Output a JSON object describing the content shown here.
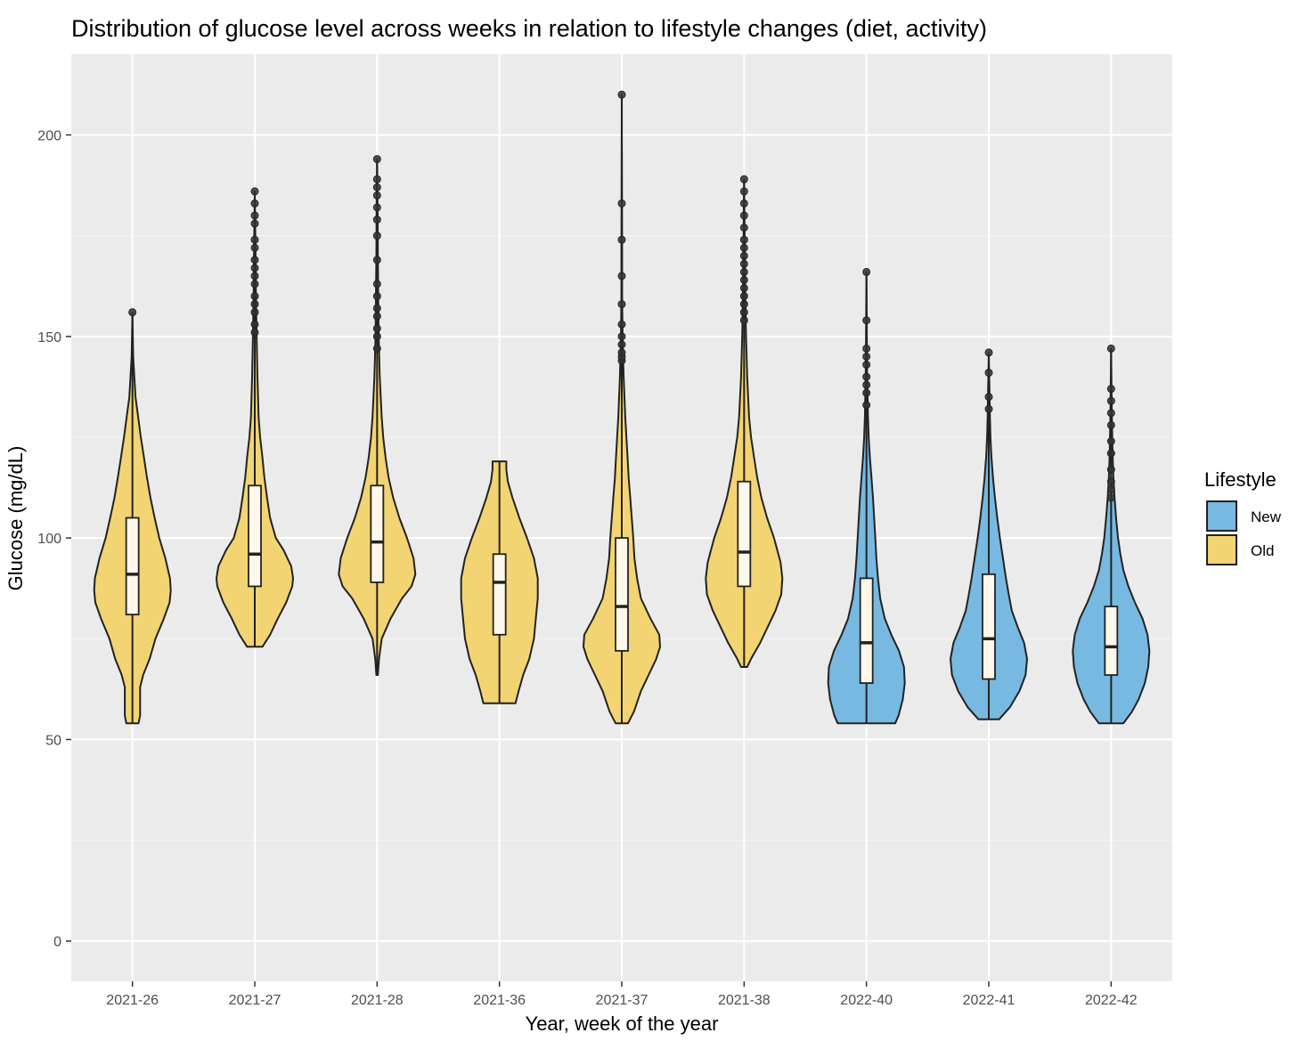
{
  "chart_data": {
    "type": "violin",
    "title": "Distribution of glucose level across weeks in relation to lifestyle changes (diet, activity)",
    "xlabel": "Year, week of the year",
    "ylabel": "Glucose (mg/dL)",
    "ylim": [
      -10,
      220
    ],
    "yticks": [
      0,
      50,
      100,
      150,
      200
    ],
    "grid": true,
    "legend": {
      "title": "Lifestyle",
      "placement": "right",
      "entries": [
        {
          "label": "New",
          "color": "#77b9e0"
        },
        {
          "label": "Old",
          "color": "#f2d472"
        }
      ]
    },
    "categories": [
      "2021-26",
      "2021-27",
      "2021-28",
      "2021-36",
      "2021-37",
      "2021-38",
      "2022-40",
      "2022-41",
      "2022-42"
    ],
    "groups": [
      {
        "category": "2021-26",
        "lifestyle": "Old",
        "min": 54,
        "q1": 81,
        "median": 91,
        "q3": 105,
        "whisker_high": 140,
        "outliers": [
          156
        ],
        "density": [
          [
            54,
            0.16
          ],
          [
            56,
            0.2
          ],
          [
            60,
            0.2
          ],
          [
            63,
            0.2
          ],
          [
            66,
            0.28
          ],
          [
            70,
            0.45
          ],
          [
            75,
            0.6
          ],
          [
            80,
            0.82
          ],
          [
            84,
            0.97
          ],
          [
            87,
            1.0
          ],
          [
            90,
            0.98
          ],
          [
            95,
            0.86
          ],
          [
            100,
            0.7
          ],
          [
            105,
            0.58
          ],
          [
            110,
            0.47
          ],
          [
            115,
            0.38
          ],
          [
            120,
            0.3
          ],
          [
            125,
            0.22
          ],
          [
            130,
            0.15
          ],
          [
            135,
            0.08
          ],
          [
            140,
            0.05
          ],
          [
            145,
            0.02
          ],
          [
            150,
            0.01
          ],
          [
            156,
            0
          ]
        ]
      },
      {
        "category": "2021-27",
        "lifestyle": "Old",
        "min": 73,
        "q1": 88,
        "median": 96,
        "q3": 113,
        "whisker_high": 150,
        "outliers": [
          151,
          153,
          156,
          158,
          160,
          163,
          165,
          167,
          169,
          172,
          174,
          178,
          180,
          183,
          186
        ],
        "density": [
          [
            73,
            0.2
          ],
          [
            76,
            0.4
          ],
          [
            80,
            0.6
          ],
          [
            84,
            0.82
          ],
          [
            88,
            0.98
          ],
          [
            90,
            1.0
          ],
          [
            93,
            0.95
          ],
          [
            97,
            0.75
          ],
          [
            100,
            0.55
          ],
          [
            105,
            0.4
          ],
          [
            110,
            0.32
          ],
          [
            115,
            0.25
          ],
          [
            120,
            0.2
          ],
          [
            125,
            0.14
          ],
          [
            130,
            0.1
          ],
          [
            140,
            0.07
          ],
          [
            150,
            0.05
          ],
          [
            160,
            0.03
          ],
          [
            170,
            0.02
          ],
          [
            186,
            0
          ]
        ]
      },
      {
        "category": "2021-28",
        "lifestyle": "Old",
        "min": 66,
        "q1": 89,
        "median": 99,
        "q3": 113,
        "whisker_high": 145,
        "outliers": [
          147,
          150,
          152,
          155,
          157,
          160,
          163,
          169,
          175,
          179,
          182,
          185,
          187,
          189,
          194
        ],
        "density": [
          [
            66,
            0.02
          ],
          [
            70,
            0.05
          ],
          [
            75,
            0.12
          ],
          [
            80,
            0.35
          ],
          [
            85,
            0.65
          ],
          [
            88,
            0.9
          ],
          [
            91,
            1.0
          ],
          [
            95,
            0.95
          ],
          [
            100,
            0.78
          ],
          [
            105,
            0.58
          ],
          [
            110,
            0.42
          ],
          [
            115,
            0.3
          ],
          [
            120,
            0.22
          ],
          [
            125,
            0.16
          ],
          [
            130,
            0.12
          ],
          [
            140,
            0.07
          ],
          [
            150,
            0.04
          ],
          [
            160,
            0.03
          ],
          [
            170,
            0.02
          ],
          [
            180,
            0.015
          ],
          [
            194,
            0
          ]
        ]
      },
      {
        "category": "2021-36",
        "lifestyle": "Old",
        "min": 59,
        "q1": 76,
        "median": 89,
        "q3": 96,
        "whisker_high": 119,
        "outliers": [],
        "density": [
          [
            59,
            0.42
          ],
          [
            62,
            0.5
          ],
          [
            66,
            0.62
          ],
          [
            70,
            0.78
          ],
          [
            75,
            0.9
          ],
          [
            80,
            0.95
          ],
          [
            85,
            1.0
          ],
          [
            90,
            1.0
          ],
          [
            95,
            0.9
          ],
          [
            100,
            0.72
          ],
          [
            105,
            0.52
          ],
          [
            110,
            0.34
          ],
          [
            114,
            0.22
          ],
          [
            117,
            0.18
          ],
          [
            119,
            0.18
          ]
        ]
      },
      {
        "category": "2021-37",
        "lifestyle": "Old",
        "min": 54,
        "q1": 72,
        "median": 83,
        "q3": 100,
        "whisker_high": 143,
        "outliers": [
          144,
          145,
          146,
          148,
          150,
          153,
          158,
          165,
          174,
          183,
          210
        ],
        "density": [
          [
            54,
            0.16
          ],
          [
            57,
            0.32
          ],
          [
            62,
            0.5
          ],
          [
            66,
            0.7
          ],
          [
            70,
            0.9
          ],
          [
            73,
            1.0
          ],
          [
            76,
            0.98
          ],
          [
            80,
            0.75
          ],
          [
            85,
            0.5
          ],
          [
            90,
            0.4
          ],
          [
            95,
            0.33
          ],
          [
            100,
            0.3
          ],
          [
            105,
            0.26
          ],
          [
            110,
            0.22
          ],
          [
            115,
            0.18
          ],
          [
            120,
            0.15
          ],
          [
            125,
            0.12
          ],
          [
            130,
            0.09
          ],
          [
            140,
            0.05
          ],
          [
            150,
            0.02
          ],
          [
            160,
            0.01
          ],
          [
            170,
            0.01
          ],
          [
            210,
            0
          ]
        ]
      },
      {
        "category": "2021-38",
        "lifestyle": "Old",
        "min": 68,
        "q1": 88,
        "median": 96.5,
        "q3": 114,
        "whisker_high": 153,
        "outliers": [
          154,
          156,
          158,
          160,
          162,
          164,
          166,
          168,
          170,
          172,
          174,
          177,
          180,
          183,
          186,
          189
        ],
        "density": [
          [
            68,
            0.08
          ],
          [
            70,
            0.18
          ],
          [
            74,
            0.42
          ],
          [
            78,
            0.62
          ],
          [
            82,
            0.82
          ],
          [
            86,
            0.97
          ],
          [
            90,
            1.0
          ],
          [
            94,
            0.95
          ],
          [
            100,
            0.78
          ],
          [
            105,
            0.6
          ],
          [
            110,
            0.45
          ],
          [
            115,
            0.34
          ],
          [
            120,
            0.26
          ],
          [
            125,
            0.18
          ],
          [
            130,
            0.13
          ],
          [
            140,
            0.08
          ],
          [
            150,
            0.05
          ],
          [
            160,
            0.03
          ],
          [
            170,
            0.02
          ],
          [
            189,
            0
          ]
        ]
      },
      {
        "category": "2022-40",
        "lifestyle": "New",
        "min": 54,
        "q1": 64,
        "median": 74,
        "q3": 90,
        "whisker_high": 127,
        "outliers": [
          133,
          136,
          138,
          140,
          143,
          145,
          147,
          154,
          166
        ],
        "density": [
          [
            54,
            0.75
          ],
          [
            56,
            0.84
          ],
          [
            60,
            0.95
          ],
          [
            64,
            1.0
          ],
          [
            68,
            0.98
          ],
          [
            72,
            0.85
          ],
          [
            76,
            0.65
          ],
          [
            80,
            0.48
          ],
          [
            85,
            0.36
          ],
          [
            90,
            0.3
          ],
          [
            95,
            0.26
          ],
          [
            100,
            0.23
          ],
          [
            105,
            0.2
          ],
          [
            110,
            0.17
          ],
          [
            115,
            0.13
          ],
          [
            120,
            0.09
          ],
          [
            125,
            0.06
          ],
          [
            130,
            0.04
          ],
          [
            140,
            0.02
          ],
          [
            150,
            0.01
          ],
          [
            166,
            0
          ]
        ]
      },
      {
        "category": "2022-41",
        "lifestyle": "New",
        "min": 55,
        "q1": 65,
        "median": 75,
        "q3": 91,
        "whisker_high": 131,
        "outliers": [
          132,
          135,
          141,
          146
        ],
        "density": [
          [
            55,
            0.27
          ],
          [
            58,
            0.55
          ],
          [
            62,
            0.8
          ],
          [
            66,
            0.96
          ],
          [
            70,
            1.0
          ],
          [
            74,
            0.92
          ],
          [
            78,
            0.75
          ],
          [
            82,
            0.6
          ],
          [
            86,
            0.52
          ],
          [
            90,
            0.45
          ],
          [
            95,
            0.37
          ],
          [
            100,
            0.29
          ],
          [
            105,
            0.22
          ],
          [
            110,
            0.16
          ],
          [
            115,
            0.11
          ],
          [
            120,
            0.07
          ],
          [
            125,
            0.045
          ],
          [
            130,
            0.03
          ],
          [
            135,
            0.02
          ],
          [
            146,
            0
          ]
        ]
      },
      {
        "category": "2022-42",
        "lifestyle": "New",
        "min": 54,
        "q1": 66,
        "median": 73,
        "q3": 83,
        "whisker_high": 107,
        "outliers": [
          110,
          112,
          114,
          117,
          121,
          124,
          128,
          131,
          134,
          137,
          147
        ],
        "density": [
          [
            54,
            0.32
          ],
          [
            57,
            0.55
          ],
          [
            60,
            0.72
          ],
          [
            64,
            0.88
          ],
          [
            68,
            0.97
          ],
          [
            72,
            1.0
          ],
          [
            76,
            0.95
          ],
          [
            80,
            0.82
          ],
          [
            84,
            0.62
          ],
          [
            88,
            0.45
          ],
          [
            92,
            0.32
          ],
          [
            96,
            0.24
          ],
          [
            100,
            0.18
          ],
          [
            105,
            0.13
          ],
          [
            110,
            0.09
          ],
          [
            115,
            0.06
          ],
          [
            120,
            0.04
          ],
          [
            130,
            0.02
          ],
          [
            147,
            0
          ]
        ]
      }
    ]
  }
}
